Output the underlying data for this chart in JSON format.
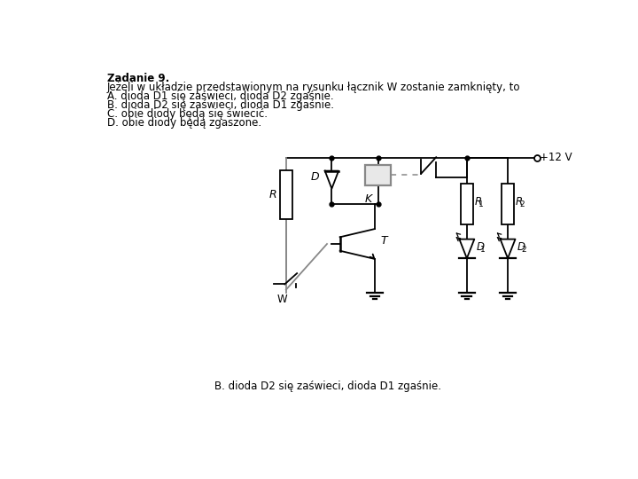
{
  "title_bold": "Zadanie 9.",
  "text_lines": [
    "Jeżeli w układzie przedstawionym na rysunku łącznik W zostanie zamknięty, to",
    "A. dioda D1 się zaświeci, dioda D2 zgaśnie.",
    "B. dioda D2 się zaświeci, dioda D1 zgaśnie.",
    "C. obie diody będą się świecić.",
    "D. obie diody będą zgaszone."
  ],
  "answer_text": "B. dioda D2 się zaświeci, dioda D1 zgaśnie.",
  "bg_color": "#ffffff",
  "lc": "#000000",
  "tc": "#000000",
  "gray": "#888888"
}
